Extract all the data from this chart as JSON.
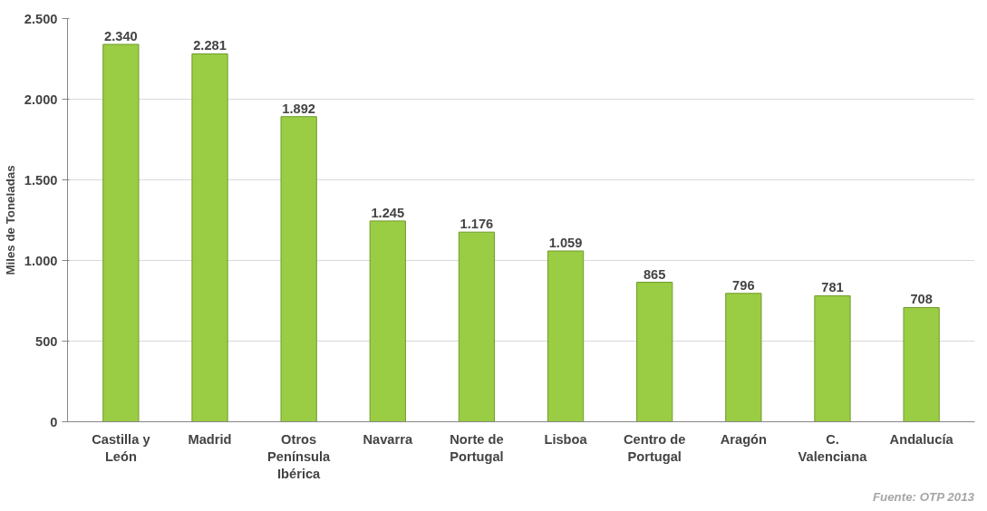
{
  "chart_data": {
    "type": "bar",
    "ylabel": "Miles de Toneladas",
    "categories": [
      "Castilla y León",
      "Madrid",
      "Otros Península Ibérica",
      "Navarra",
      "Norte de Portugal",
      "Lisboa",
      "Centro de Portugal",
      "Aragón",
      "C. Valenciana",
      "Andalucía"
    ],
    "values": [
      2340,
      2281,
      1892,
      1245,
      1176,
      1059,
      865,
      796,
      781,
      708
    ],
    "value_labels": [
      "2.340",
      "2.281",
      "1.892",
      "1.245",
      "1.176",
      "1.059",
      "865",
      "796",
      "781",
      "708"
    ],
    "color": "#9acd44",
    "ylim": [
      0,
      2500
    ],
    "yticks": [
      0,
      500,
      {
        "value": 1000,
        "label": "1.000"
      },
      {
        "value": 1500,
        "label": "1.500"
      },
      {
        "value": 2000,
        "label": "2.000"
      },
      {
        "value": 2500,
        "label": "2.500"
      }
    ],
    "grid": "y",
    "annotations": [
      "Fuente: OTP 2013"
    ]
  }
}
